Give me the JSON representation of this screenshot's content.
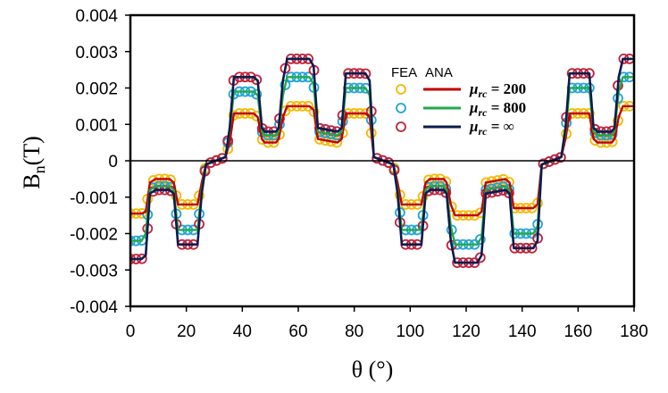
{
  "chart_data": {
    "type": "line",
    "xlabel": "θ (°)",
    "ylabel": "Bn(T)",
    "xlim": [
      0,
      180
    ],
    "ylim": [
      -0.004,
      0.004
    ],
    "x_ticks": [
      "0",
      "20",
      "40",
      "60",
      "80",
      "100",
      "120",
      "140",
      "160",
      "180"
    ],
    "y_ticks": [
      "0.004",
      "0.003",
      "0.002",
      "0.001",
      "0",
      "-0.001",
      "-0.002",
      "-0.003",
      "-0.004"
    ],
    "grid": false,
    "legend_position": "top-right",
    "legend": {
      "header_markers": "FEA",
      "header_lines": "ANA",
      "entries": [
        {
          "label": "μrc = 200",
          "value": "= 200"
        },
        {
          "label": "μrc = 800",
          "value": "= 800"
        },
        {
          "label": "μrc = ∞",
          "value": "= ∞"
        }
      ]
    },
    "series": [
      {
        "name": "μrc = 200",
        "color_line": "#c00000",
        "color_marker": "#f5b800",
        "x": [
          0,
          4,
          5.5,
          7,
          9,
          10,
          14,
          15.5,
          17,
          24,
          25.5,
          27,
          34,
          35.5,
          37,
          44,
          45.5,
          47,
          48,
          52,
          53,
          54.5,
          56,
          64,
          65.5,
          67,
          74,
          75.5,
          77,
          84,
          85.5,
          87,
          94,
          95.5,
          97,
          104,
          105.5,
          107,
          108,
          112,
          113,
          114.5,
          116,
          124,
          125.5,
          127,
          134,
          135.5,
          137,
          144,
          145.5,
          147,
          154,
          155.5,
          157,
          164,
          165.5,
          167,
          168,
          172,
          173,
          174.5,
          176,
          180
        ],
        "y": [
          -0.00145,
          -0.00145,
          -0.0014,
          -0.0006,
          -0.0005,
          -0.0005,
          -0.0005,
          -0.0006,
          -0.0012,
          -0.0012,
          -0.0006,
          -0.0001,
          0.0001,
          0.0005,
          0.0013,
          0.0013,
          0.0012,
          0.0006,
          0.0005,
          0.0005,
          0.0006,
          0.0012,
          0.0015,
          0.0015,
          0.0014,
          0.0006,
          0.0005,
          0.0006,
          0.0013,
          0.0013,
          0.0012,
          0.0001,
          -0.0001,
          -0.0006,
          -0.0012,
          -0.0012,
          -0.0006,
          -0.0005,
          -0.0005,
          -0.0005,
          -0.0006,
          -0.0012,
          -0.0015,
          -0.0015,
          -0.0014,
          -0.0006,
          -0.0005,
          -0.0006,
          -0.0013,
          -0.0013,
          -0.0012,
          -0.0001,
          0.0001,
          0.0006,
          0.0013,
          0.0013,
          0.0006,
          0.0005,
          0.0005,
          0.0005,
          0.0006,
          0.0012,
          0.0015,
          0.0015
        ]
      },
      {
        "name": "μrc = 800",
        "color_line": "#1faa4b",
        "color_marker": "#1fa3d6",
        "x": [
          0,
          4,
          5.5,
          7,
          9,
          10,
          14,
          15.5,
          17,
          24,
          25.5,
          27,
          34,
          35.5,
          37,
          44,
          45.5,
          47,
          48,
          52,
          53,
          54.5,
          56,
          64,
          65.5,
          67,
          74,
          75.5,
          77,
          84,
          85.5,
          87,
          94,
          95.5,
          97,
          104,
          105.5,
          107,
          108,
          112,
          113,
          114.5,
          116,
          124,
          125.5,
          127,
          134,
          135.5,
          137,
          144,
          145.5,
          147,
          154,
          155.5,
          157,
          164,
          165.5,
          167,
          168,
          172,
          173,
          174.5,
          176,
          180
        ],
        "y": [
          -0.0022,
          -0.0022,
          -0.002,
          -0.0008,
          -0.0007,
          -0.0007,
          -0.0007,
          -0.0008,
          -0.0019,
          -0.0019,
          -0.0008,
          -0.0001,
          0.0001,
          0.0008,
          0.0019,
          0.0019,
          0.0018,
          0.0008,
          0.0007,
          0.0007,
          0.0008,
          0.0018,
          0.0023,
          0.0023,
          0.0021,
          0.0008,
          0.0007,
          0.0008,
          0.002,
          0.002,
          0.0018,
          0.0001,
          -0.0001,
          -0.0008,
          -0.0019,
          -0.0019,
          -0.0008,
          -0.0007,
          -0.0007,
          -0.0007,
          -0.0008,
          -0.0018,
          -0.0023,
          -0.0023,
          -0.0021,
          -0.0008,
          -0.0007,
          -0.0008,
          -0.002,
          -0.002,
          -0.0018,
          -0.0001,
          0.0001,
          0.0008,
          0.002,
          0.002,
          0.0008,
          0.0007,
          0.0007,
          0.0007,
          0.0008,
          0.0019,
          0.0023,
          0.0023
        ]
      },
      {
        "name": "μrc = ∞",
        "color_line": "#0d1b4c",
        "color_marker": "#c0203a",
        "x": [
          0,
          4,
          5.5,
          7,
          9,
          10,
          14,
          15.5,
          17,
          24,
          25.5,
          27,
          34,
          35.5,
          37,
          44,
          45.5,
          47,
          48,
          52,
          53,
          54.5,
          56,
          64,
          65.5,
          67,
          74,
          75.5,
          77,
          84,
          85.5,
          87,
          94,
          95.5,
          97,
          104,
          105.5,
          107,
          108,
          112,
          113,
          114.5,
          116,
          124,
          125.5,
          127,
          134,
          135.5,
          137,
          144,
          145.5,
          147,
          154,
          155.5,
          157,
          164,
          165.5,
          167,
          168,
          172,
          173,
          174.5,
          176,
          180
        ],
        "y": [
          -0.0027,
          -0.0027,
          -0.0026,
          -0.0009,
          -0.0008,
          -0.0008,
          -0.0008,
          -0.0009,
          -0.0023,
          -0.0023,
          -0.0009,
          -0.0001,
          0.0001,
          0.0009,
          0.0023,
          0.0023,
          0.0022,
          0.0009,
          0.0008,
          0.0008,
          0.0009,
          0.0022,
          0.0028,
          0.0028,
          0.0026,
          0.0009,
          0.0008,
          0.0009,
          0.0024,
          0.0024,
          0.0022,
          0.0001,
          -0.0001,
          -0.0009,
          -0.0023,
          -0.0023,
          -0.0009,
          -0.0008,
          -0.0008,
          -0.0008,
          -0.0009,
          -0.0022,
          -0.0028,
          -0.0028,
          -0.0026,
          -0.0009,
          -0.0008,
          -0.0009,
          -0.0024,
          -0.0024,
          -0.0022,
          -0.0001,
          0.0001,
          0.0009,
          0.0024,
          0.0024,
          0.0009,
          0.0008,
          0.0008,
          0.0008,
          0.0009,
          0.0023,
          0.0028,
          0.0028
        ]
      }
    ]
  }
}
